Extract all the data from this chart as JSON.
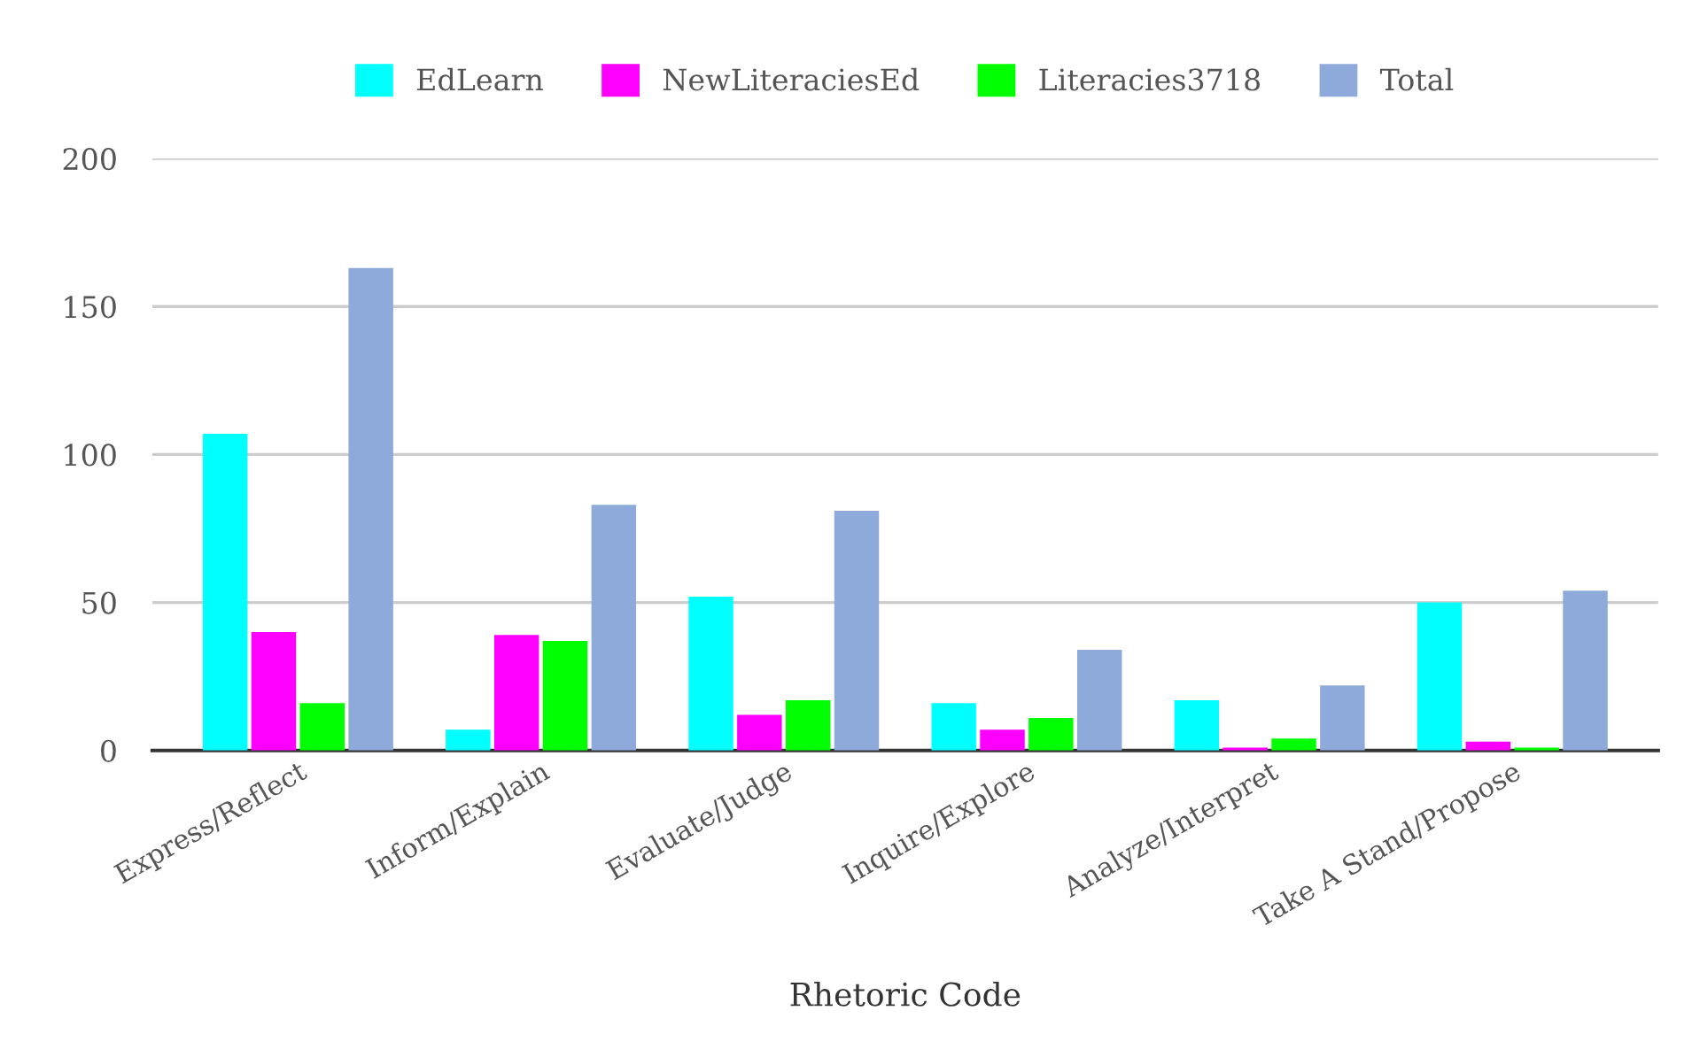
{
  "chart_data": {
    "type": "bar",
    "xlabel": "Rhetoric Code",
    "categories": [
      "Express/Reflect",
      "Inform/Explain",
      "Evaluate/Judge",
      "Inquire/Explore",
      "Analyze/Interpret",
      "Take A Stand/Propose"
    ],
    "series": [
      {
        "name": "EdLearn",
        "color": "#00ffff",
        "values": [
          107,
          7,
          52,
          16,
          17,
          50
        ]
      },
      {
        "name": "NewLiteraciesEd",
        "color": "#ff00ff",
        "values": [
          40,
          39,
          12,
          7,
          1,
          3
        ]
      },
      {
        "name": "Literacies3718",
        "color": "#00ff00",
        "values": [
          16,
          37,
          17,
          11,
          4,
          1
        ]
      },
      {
        "name": "Total",
        "color": "#8eaadb",
        "values": [
          163,
          83,
          81,
          34,
          22,
          54
        ]
      }
    ],
    "ylim": [
      0,
      200
    ],
    "yticks": [
      0,
      50,
      100,
      150,
      200
    ],
    "grid": "y",
    "legend": "top"
  }
}
